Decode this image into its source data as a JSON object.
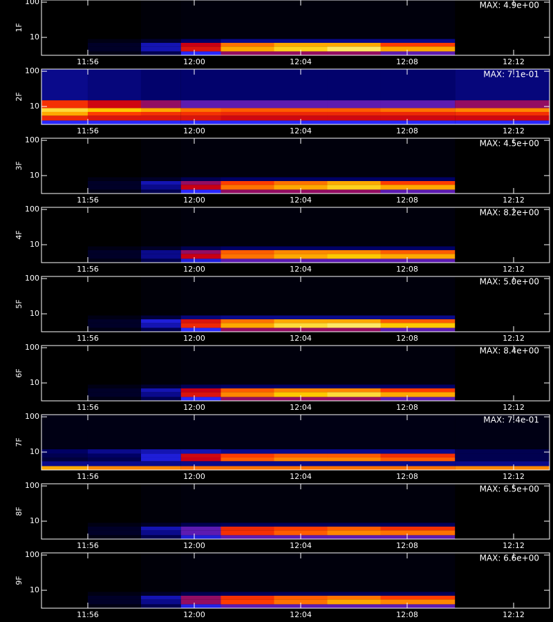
{
  "chart_data": [
    {
      "type": "heatmap",
      "ylabel": "1F",
      "annotation": "MAX: 4.9e+00",
      "ylog": true,
      "xlim": [
        714.26,
        733.35
      ],
      "ylim": [
        3.1,
        115
      ],
      "xticks": [
        {
          "value": 716,
          "label": "11:56"
        },
        {
          "value": 720,
          "label": "12:00"
        },
        {
          "value": 724,
          "label": "12:04"
        },
        {
          "value": 728,
          "label": "12:08"
        },
        {
          "value": 732,
          "label": "12:12"
        }
      ],
      "yticks": [
        10,
        100
      ],
      "xbins": [
        714.26,
        716,
        718,
        719.5,
        721,
        723,
        725,
        727,
        729.8,
        733.35
      ],
      "ybins": [
        3.1,
        4,
        5.5,
        7,
        9,
        115
      ],
      "z": [
        [
          0,
          0.05,
          0.2,
          0.45,
          0.55,
          0.55,
          0.55,
          0.5,
          0
        ],
        [
          0,
          0.1,
          0.35,
          0.65,
          0.85,
          0.9,
          0.95,
          0.85,
          0
        ],
        [
          0,
          0.1,
          0.35,
          0.6,
          0.8,
          0.85,
          0.85,
          0.75,
          0
        ],
        [
          0,
          0.05,
          0.12,
          0.25,
          0.3,
          0.3,
          0.3,
          0.3,
          0
        ],
        [
          0,
          0,
          0.02,
          0.03,
          0.03,
          0.03,
          0.03,
          0.03,
          0
        ]
      ]
    },
    {
      "type": "heatmap",
      "ylabel": "2F",
      "annotation": "MAX: 7.1e-01",
      "ylog": true,
      "xlim": [
        714.26,
        733.35
      ],
      "ylim": [
        3.1,
        115
      ],
      "xticks": [
        {
          "value": 716,
          "label": "11:56"
        },
        {
          "value": 720,
          "label": "12:00"
        },
        {
          "value": 724,
          "label": "12:04"
        },
        {
          "value": 728,
          "label": "12:08"
        },
        {
          "value": 732,
          "label": "12:12"
        }
      ],
      "yticks": [
        10,
        100
      ],
      "xbins": [
        714.26,
        716,
        718,
        719.5,
        721,
        723,
        725,
        727,
        729.8,
        733.35
      ],
      "ybins": [
        3.1,
        4,
        5.5,
        7,
        9,
        15,
        115
      ],
      "z": [
        [
          0.45,
          0.45,
          0.45,
          0.45,
          0.45,
          0.45,
          0.45,
          0.45,
          0.45
        ],
        [
          0.7,
          0.65,
          0.65,
          0.65,
          0.62,
          0.62,
          0.62,
          0.62,
          0.62
        ],
        [
          0.85,
          0.75,
          0.72,
          0.72,
          0.7,
          0.7,
          0.7,
          0.7,
          0.72
        ],
        [
          0.92,
          0.88,
          0.85,
          0.8,
          0.78,
          0.78,
          0.78,
          0.8,
          0.82
        ],
        [
          0.72,
          0.62,
          0.55,
          0.5,
          0.5,
          0.5,
          0.5,
          0.5,
          0.55
        ],
        [
          0.3,
          0.28,
          0.26,
          0.26,
          0.26,
          0.26,
          0.26,
          0.26,
          0.28
        ]
      ]
    },
    {
      "type": "heatmap",
      "ylabel": "3F",
      "annotation": "MAX: 4.5e+00",
      "ylog": true,
      "xlim": [
        714.26,
        733.35
      ],
      "ylim": [
        3.1,
        115
      ],
      "xticks": [
        {
          "value": 716,
          "label": "11:56"
        },
        {
          "value": 720,
          "label": "12:00"
        },
        {
          "value": 724,
          "label": "12:04"
        },
        {
          "value": 728,
          "label": "12:08"
        },
        {
          "value": 732,
          "label": "12:12"
        }
      ],
      "yticks": [
        10,
        100
      ],
      "xbins": [
        714.26,
        716,
        718,
        719.5,
        721,
        723,
        725,
        727,
        729.8,
        733.35
      ],
      "ybins": [
        3.1,
        4,
        5.5,
        7,
        9,
        115
      ],
      "z": [
        [
          0,
          0.05,
          0.2,
          0.45,
          0.55,
          0.55,
          0.55,
          0.5,
          0
        ],
        [
          0,
          0.1,
          0.3,
          0.6,
          0.8,
          0.85,
          0.9,
          0.85,
          0
        ],
        [
          0,
          0.1,
          0.35,
          0.55,
          0.75,
          0.8,
          0.85,
          0.75,
          0
        ],
        [
          0,
          0.05,
          0.1,
          0.2,
          0.25,
          0.25,
          0.25,
          0.25,
          0
        ],
        [
          0,
          0,
          0.02,
          0.03,
          0.03,
          0.03,
          0.03,
          0.03,
          0
        ]
      ]
    },
    {
      "type": "heatmap",
      "ylabel": "4F",
      "annotation": "MAX: 8.2e+00",
      "ylog": true,
      "xlim": [
        714.26,
        733.35
      ],
      "ylim": [
        3.1,
        115
      ],
      "xticks": [
        {
          "value": 716,
          "label": "11:56"
        },
        {
          "value": 720,
          "label": "12:00"
        },
        {
          "value": 724,
          "label": "12:04"
        },
        {
          "value": 728,
          "label": "12:08"
        },
        {
          "value": 732,
          "label": "12:12"
        }
      ],
      "yticks": [
        10,
        100
      ],
      "xbins": [
        714.26,
        716,
        718,
        719.5,
        721,
        723,
        725,
        727,
        729.8,
        733.35
      ],
      "ybins": [
        3.1,
        4,
        5.5,
        7,
        9,
        115
      ],
      "z": [
        [
          0,
          0.05,
          0.2,
          0.4,
          0.5,
          0.5,
          0.5,
          0.5,
          0
        ],
        [
          0,
          0.1,
          0.3,
          0.6,
          0.8,
          0.85,
          0.88,
          0.85,
          0
        ],
        [
          0,
          0.1,
          0.3,
          0.55,
          0.78,
          0.82,
          0.82,
          0.78,
          0
        ],
        [
          0,
          0.05,
          0.1,
          0.2,
          0.25,
          0.25,
          0.25,
          0.25,
          0
        ],
        [
          0,
          0,
          0.02,
          0.03,
          0.03,
          0.03,
          0.03,
          0.03,
          0
        ]
      ]
    },
    {
      "type": "heatmap",
      "ylabel": "5F",
      "annotation": "MAX: 5.0e+00",
      "ylog": true,
      "xlim": [
        714.26,
        733.35
      ],
      "ylim": [
        3.1,
        115
      ],
      "xticks": [
        {
          "value": 716,
          "label": "11:56"
        },
        {
          "value": 720,
          "label": "12:00"
        },
        {
          "value": 724,
          "label": "12:04"
        },
        {
          "value": 728,
          "label": "12:08"
        },
        {
          "value": 732,
          "label": "12:12"
        }
      ],
      "yticks": [
        10,
        100
      ],
      "xbins": [
        714.26,
        716,
        718,
        719.5,
        721,
        723,
        725,
        727,
        729.8,
        733.35
      ],
      "ybins": [
        3.1,
        4,
        5.5,
        7,
        9,
        115
      ],
      "z": [
        [
          0,
          0.05,
          0.2,
          0.45,
          0.55,
          0.55,
          0.55,
          0.5,
          0
        ],
        [
          0,
          0.1,
          0.35,
          0.7,
          0.85,
          0.92,
          0.95,
          0.88,
          0
        ],
        [
          0,
          0.1,
          0.4,
          0.65,
          0.8,
          0.85,
          0.85,
          0.78,
          0
        ],
        [
          0,
          0.05,
          0.15,
          0.28,
          0.3,
          0.3,
          0.3,
          0.3,
          0
        ],
        [
          0,
          0,
          0.02,
          0.03,
          0.03,
          0.03,
          0.03,
          0.03,
          0
        ]
      ]
    },
    {
      "type": "heatmap",
      "ylabel": "6F",
      "annotation": "MAX: 8.4e+00",
      "ylog": true,
      "xlim": [
        714.26,
        733.35
      ],
      "ylim": [
        3.1,
        115
      ],
      "xticks": [
        {
          "value": 716,
          "label": "11:56"
        },
        {
          "value": 720,
          "label": "12:00"
        },
        {
          "value": 724,
          "label": "12:04"
        },
        {
          "value": 728,
          "label": "12:08"
        },
        {
          "value": 732,
          "label": "12:12"
        }
      ],
      "yticks": [
        10,
        100
      ],
      "xbins": [
        714.26,
        716,
        718,
        719.5,
        721,
        723,
        725,
        727,
        729.8,
        733.35
      ],
      "ybins": [
        3.1,
        4,
        5.5,
        7,
        9,
        115
      ],
      "z": [
        [
          0,
          0.05,
          0.2,
          0.45,
          0.55,
          0.55,
          0.55,
          0.5,
          0
        ],
        [
          0,
          0.1,
          0.3,
          0.65,
          0.82,
          0.88,
          0.92,
          0.85,
          0
        ],
        [
          0,
          0.1,
          0.35,
          0.6,
          0.78,
          0.82,
          0.82,
          0.75,
          0
        ],
        [
          0,
          0.05,
          0.12,
          0.22,
          0.25,
          0.25,
          0.25,
          0.25,
          0
        ],
        [
          0,
          0,
          0.02,
          0.03,
          0.03,
          0.03,
          0.03,
          0.03,
          0
        ]
      ]
    },
    {
      "type": "heatmap",
      "ylabel": "7F",
      "annotation": "MAX: 7.4e-01",
      "ylog": true,
      "xlim": [
        714.26,
        733.35
      ],
      "ylim": [
        3.1,
        115
      ],
      "xticks": [
        {
          "value": 716,
          "label": "11:56"
        },
        {
          "value": 720,
          "label": "12:00"
        },
        {
          "value": 724,
          "label": "12:04"
        },
        {
          "value": 728,
          "label": "12:08"
        },
        {
          "value": 732,
          "label": "12:12"
        }
      ],
      "yticks": [
        10,
        100
      ],
      "xbins": [
        714.26,
        716,
        718,
        719.5,
        721,
        723,
        725,
        727,
        729.8,
        733.35
      ],
      "ybins": [
        3.1,
        4,
        5.5,
        7,
        9,
        12,
        115
      ],
      "z": [
        [
          0.85,
          0.82,
          0.82,
          0.8,
          0.8,
          0.8,
          0.8,
          0.8,
          0.82
        ],
        [
          0.3,
          0.3,
          0.3,
          0.3,
          0.3,
          0.3,
          0.3,
          0.3,
          0.3
        ],
        [
          0.15,
          0.2,
          0.4,
          0.6,
          0.78,
          0.82,
          0.82,
          0.78,
          0.2
        ],
        [
          0.2,
          0.25,
          0.4,
          0.62,
          0.75,
          0.78,
          0.78,
          0.72,
          0.2
        ],
        [
          0.25,
          0.3,
          0.35,
          0.35,
          0.3,
          0.3,
          0.3,
          0.3,
          0.2
        ],
        [
          0.05,
          0.05,
          0.05,
          0.05,
          0.05,
          0.05,
          0.05,
          0.05,
          0.05
        ]
      ]
    },
    {
      "type": "heatmap",
      "ylabel": "8F",
      "annotation": "MAX: 6.5e+00",
      "ylog": true,
      "xlim": [
        714.26,
        733.35
      ],
      "ylim": [
        3.1,
        115
      ],
      "xticks": [
        {
          "value": 716,
          "label": "11:56"
        },
        {
          "value": 720,
          "label": "12:00"
        },
        {
          "value": 724,
          "label": "12:04"
        },
        {
          "value": 728,
          "label": "12:08"
        },
        {
          "value": 732,
          "label": "12:12"
        }
      ],
      "yticks": [
        10,
        100
      ],
      "xbins": [
        714.26,
        716,
        718,
        719.5,
        721,
        723,
        725,
        727,
        729.8,
        733.35
      ],
      "ybins": [
        3.1,
        4,
        5.5,
        7,
        9,
        115
      ],
      "z": [
        [
          0,
          0.05,
          0.2,
          0.4,
          0.5,
          0.5,
          0.5,
          0.5,
          0
        ],
        [
          0,
          0.1,
          0.3,
          0.5,
          0.72,
          0.78,
          0.82,
          0.8,
          0
        ],
        [
          0,
          0.1,
          0.35,
          0.5,
          0.7,
          0.75,
          0.78,
          0.72,
          0
        ],
        [
          0,
          0.05,
          0.1,
          0.2,
          0.22,
          0.22,
          0.22,
          0.22,
          0
        ],
        [
          0,
          0,
          0.02,
          0.03,
          0.03,
          0.03,
          0.03,
          0.03,
          0
        ]
      ]
    },
    {
      "type": "heatmap",
      "ylabel": "9F",
      "annotation": "MAX: 6.6e+00",
      "ylog": true,
      "xlim": [
        714.26,
        733.35
      ],
      "ylim": [
        3.1,
        115
      ],
      "xticks": [
        {
          "value": 716,
          "label": "11:56"
        },
        {
          "value": 720,
          "label": "12:00"
        },
        {
          "value": 724,
          "label": "12:04"
        },
        {
          "value": 728,
          "label": "12:08"
        },
        {
          "value": 732,
          "label": "12:12"
        }
      ],
      "yticks": [
        10,
        100
      ],
      "xbins": [
        714.26,
        716,
        718,
        719.5,
        721,
        723,
        725,
        727,
        729.8,
        733.35
      ],
      "ybins": [
        3.1,
        4,
        5.5,
        7,
        9,
        115
      ],
      "z": [
        [
          0,
          0.05,
          0.2,
          0.42,
          0.5,
          0.5,
          0.5,
          0.5,
          0
        ],
        [
          0,
          0.1,
          0.3,
          0.55,
          0.75,
          0.8,
          0.85,
          0.82,
          0
        ],
        [
          0,
          0.1,
          0.35,
          0.55,
          0.72,
          0.78,
          0.8,
          0.75,
          0
        ],
        [
          0,
          0.05,
          0.1,
          0.2,
          0.22,
          0.22,
          0.22,
          0.22,
          0
        ],
        [
          0,
          0,
          0.02,
          0.03,
          0.03,
          0.03,
          0.03,
          0.03,
          0
        ]
      ]
    }
  ]
}
